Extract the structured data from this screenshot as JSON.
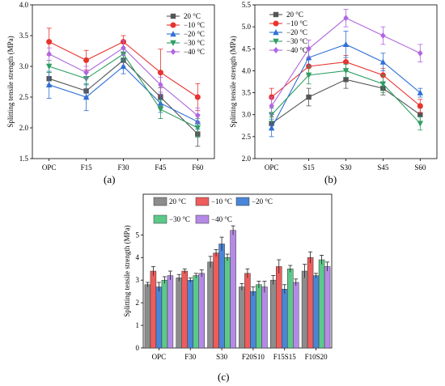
{
  "panels": {
    "a": "(a)",
    "b": "(b)",
    "c": "(c)"
  },
  "chart_data": [
    {
      "id": "a",
      "type": "line",
      "title": "",
      "xlabel": "",
      "ylabel": "Splitting tensile strength (MPa)",
      "categories": [
        "OPC",
        "F15",
        "F30",
        "F45",
        "F60"
      ],
      "ylim": [
        1.5,
        4.0
      ],
      "yticks": [
        "1.5",
        "2.0",
        "2.5",
        "3.0",
        "3.5",
        "4.0"
      ],
      "legend_position": "top-right",
      "series": [
        {
          "name": "20 °C",
          "color": "#555555",
          "marker": "square",
          "values": [
            2.8,
            2.6,
            3.1,
            2.5,
            1.9
          ],
          "errors": [
            0.1,
            0.1,
            0.1,
            0.15,
            0.2
          ]
        },
        {
          "name": "−10 °C",
          "color": "#e8332f",
          "marker": "circle",
          "values": [
            3.4,
            3.1,
            3.4,
            2.9,
            2.5
          ],
          "errors": [
            0.22,
            0.16,
            0.1,
            0.38,
            0.22
          ]
        },
        {
          "name": "−20 °C",
          "color": "#2f6fd6",
          "marker": "triangle",
          "values": [
            2.7,
            2.5,
            3.0,
            2.4,
            2.1
          ],
          "errors": [
            0.22,
            0.22,
            0.12,
            0.15,
            0.12
          ]
        },
        {
          "name": "−30 °C",
          "color": "#2e9e62",
          "marker": "tri-down",
          "values": [
            3.0,
            2.8,
            3.2,
            2.3,
            2.0
          ],
          "errors": [
            0.1,
            0.1,
            0.1,
            0.15,
            0.15
          ]
        },
        {
          "name": "−40 °C",
          "color": "#b066e0",
          "marker": "diamond",
          "values": [
            3.2,
            2.9,
            3.3,
            2.7,
            2.2
          ],
          "errors": [
            0.1,
            0.1,
            0.12,
            0.12,
            0.12
          ]
        }
      ]
    },
    {
      "id": "b",
      "type": "line",
      "title": "",
      "xlabel": "",
      "ylabel": "Splitting tensile strength (MPa)",
      "categories": [
        "OPC",
        "S15",
        "S30",
        "S45",
        "S60"
      ],
      "ylim": [
        2.0,
        5.5
      ],
      "yticks": [
        "2.0",
        "2.5",
        "3.0",
        "3.5",
        "4.0",
        "4.5",
        "5.0",
        "5.5"
      ],
      "legend_position": "top-left",
      "series": [
        {
          "name": "20 °C",
          "color": "#555555",
          "marker": "square",
          "values": [
            2.8,
            3.4,
            3.8,
            3.6,
            3.0
          ],
          "errors": [
            0.15,
            0.2,
            0.2,
            0.15,
            0.15
          ]
        },
        {
          "name": "−10 °C",
          "color": "#e8332f",
          "marker": "circle",
          "values": [
            3.4,
            4.1,
            4.2,
            3.9,
            3.2
          ],
          "errors": [
            0.2,
            0.2,
            0.15,
            0.15,
            0.15
          ]
        },
        {
          "name": "−20 °C",
          "color": "#2f6fd6",
          "marker": "triangle",
          "values": [
            2.7,
            4.3,
            4.6,
            4.2,
            3.5
          ],
          "errors": [
            0.2,
            0.2,
            0.3,
            0.2,
            0.1
          ]
        },
        {
          "name": "−30 °C",
          "color": "#2e9e62",
          "marker": "tri-down",
          "values": [
            3.0,
            3.9,
            4.0,
            3.7,
            2.8
          ],
          "errors": [
            0.15,
            0.2,
            0.15,
            0.2,
            0.15
          ]
        },
        {
          "name": "−40 °C",
          "color": "#b066e0",
          "marker": "diamond",
          "values": [
            3.2,
            4.5,
            5.2,
            4.8,
            4.4
          ],
          "errors": [
            0.2,
            0.2,
            0.2,
            0.2,
            0.2
          ]
        }
      ]
    },
    {
      "id": "c",
      "type": "bar",
      "title": "",
      "xlabel": "",
      "ylabel": "Splitting tensile strength (MPa)",
      "categories": [
        "OPC",
        "F30",
        "S30",
        "F20S10",
        "F15S15",
        "F10S20"
      ],
      "ylim": [
        0,
        6.8
      ],
      "yticks": [
        "0",
        "1",
        "2",
        "3",
        "4",
        "5"
      ],
      "legend_position": "top",
      "series": [
        {
          "name": "20 °C",
          "color": "#8c8c8c",
          "values": [
            2.8,
            3.1,
            3.8,
            2.7,
            3.0,
            3.4
          ],
          "errors": [
            0.1,
            0.15,
            0.25,
            0.15,
            0.2,
            0.3
          ]
        },
        {
          "name": "−10 °C",
          "color": "#ee5c5c",
          "values": [
            3.4,
            3.4,
            4.2,
            3.3,
            3.6,
            4.0
          ],
          "errors": [
            0.2,
            0.1,
            0.15,
            0.2,
            0.3,
            0.25
          ]
        },
        {
          "name": "−20 °C",
          "color": "#4a86d8",
          "values": [
            2.7,
            3.0,
            4.6,
            2.5,
            2.6,
            3.2
          ],
          "errors": [
            0.2,
            0.1,
            0.3,
            0.2,
            0.2,
            0.1
          ]
        },
        {
          "name": "−30 °C",
          "color": "#5cc98a",
          "values": [
            3.0,
            3.2,
            4.0,
            2.8,
            3.5,
            3.9
          ],
          "errors": [
            0.15,
            0.1,
            0.15,
            0.15,
            0.15,
            0.2
          ]
        },
        {
          "name": "−40 °C",
          "color": "#b58ae6",
          "values": [
            3.2,
            3.3,
            5.2,
            2.7,
            2.9,
            3.6
          ],
          "errors": [
            0.2,
            0.15,
            0.2,
            0.25,
            0.15,
            0.2
          ]
        }
      ]
    }
  ]
}
